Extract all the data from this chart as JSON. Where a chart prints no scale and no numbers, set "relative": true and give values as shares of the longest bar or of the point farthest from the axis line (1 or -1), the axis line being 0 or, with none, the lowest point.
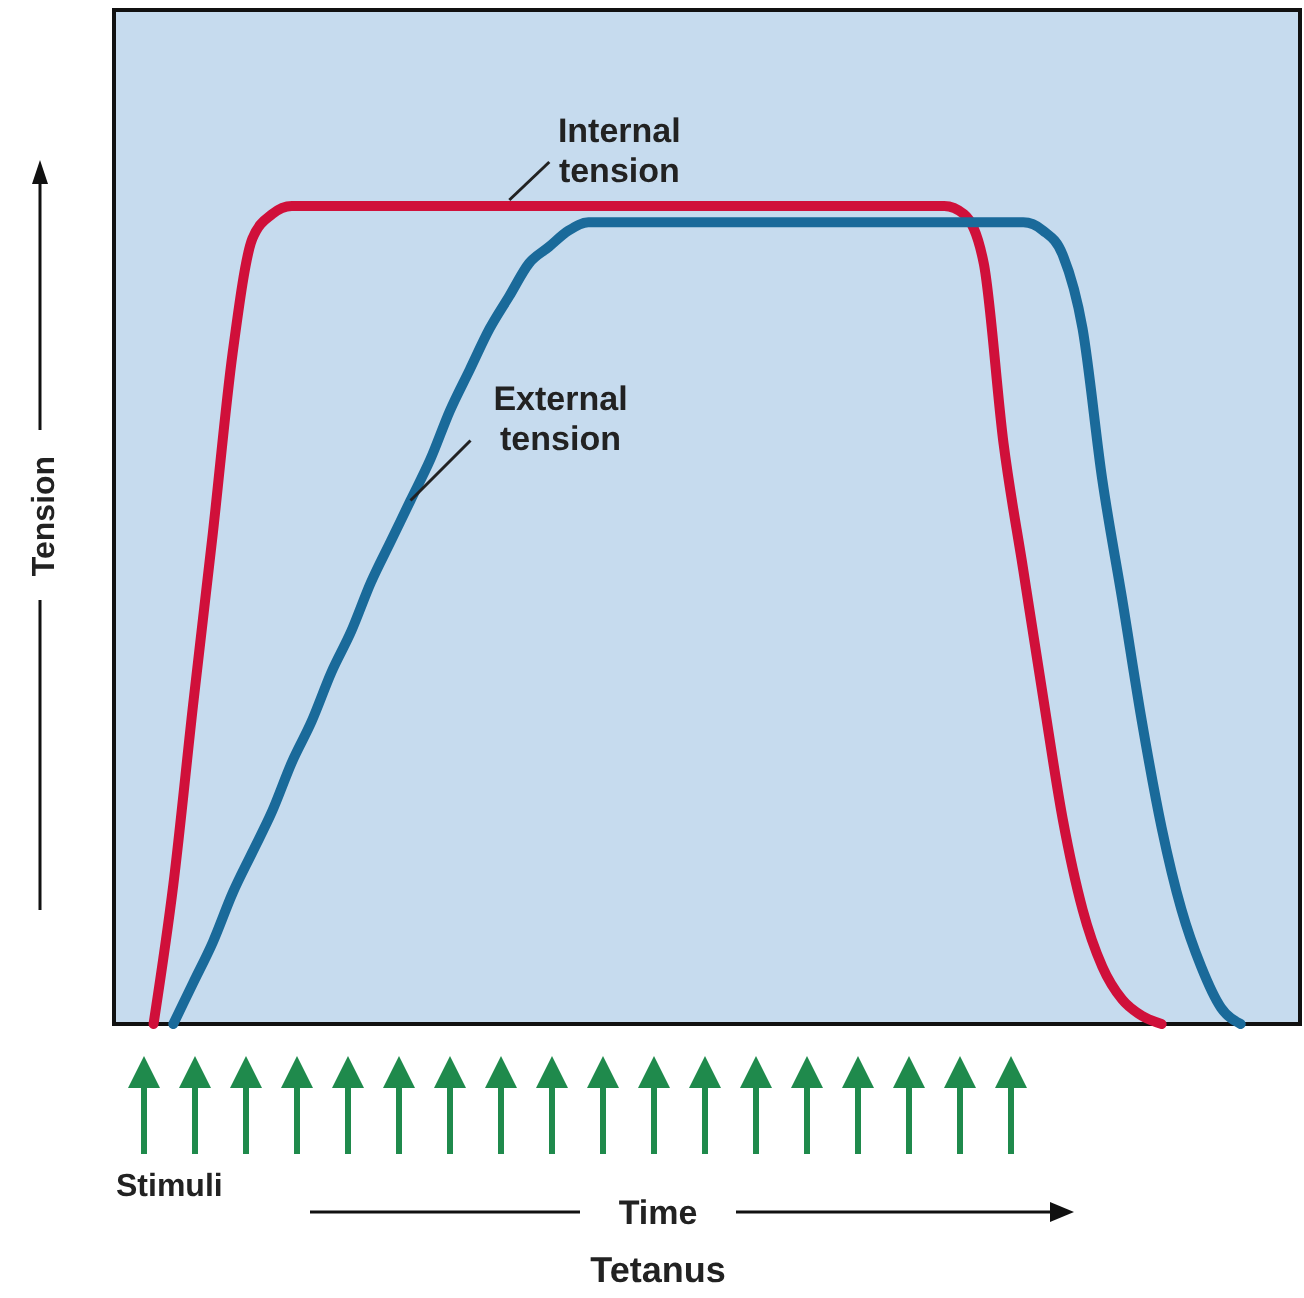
{
  "chart_data": {
    "type": "line",
    "title": "Tetanus",
    "xlabel": "Time",
    "ylabel": "Tension",
    "annotations": [
      "Stimuli"
    ],
    "relative": true,
    "categories": [
      null,
      null,
      null,
      null,
      null,
      null,
      null,
      null,
      null,
      null,
      null,
      null,
      null,
      null,
      null,
      null,
      null,
      null,
      null,
      null,
      null,
      null,
      null,
      null,
      null,
      null,
      null,
      null,
      null,
      null,
      null,
      null,
      null,
      null,
      null,
      null,
      null,
      null,
      null,
      null,
      null,
      null,
      null,
      null,
      null,
      null,
      null,
      null,
      null,
      null,
      null,
      null,
      null,
      null,
      null,
      null,
      null,
      null,
      null,
      null,
      null
    ],
    "series": [
      {
        "name": "Internal tension",
        "color": "#d0103a",
        "values": [
          null,
          null,
          0,
          0.17,
          0.39,
          0.6,
          0.82,
          0.96,
          0.99,
          1,
          1,
          1,
          1,
          1,
          1,
          1,
          1,
          1,
          1,
          1,
          1,
          1,
          1,
          1,
          1,
          1,
          1,
          1,
          1,
          1,
          1,
          1,
          1,
          1,
          1,
          1,
          1,
          1,
          1,
          1,
          1,
          1,
          1,
          0.99,
          0.93,
          0.71,
          0.555,
          0.4,
          0.25,
          0.14,
          0.07,
          0.03,
          0.01,
          0,
          null,
          null,
          null,
          null,
          null,
          null,
          null
        ]
      },
      {
        "name": "External tension",
        "color": "#1a6a9a",
        "values": [
          null,
          null,
          null,
          0,
          0.05,
          0.1,
          0.16,
          0.21,
          0.26,
          0.32,
          0.37,
          0.43,
          0.48,
          0.54,
          0.59,
          0.64,
          0.69,
          0.75,
          0.8,
          0.85,
          0.89,
          0.93,
          0.95,
          0.97,
          0.98,
          0.98,
          0.98,
          0.98,
          0.98,
          0.98,
          0.98,
          0.98,
          0.98,
          0.98,
          0.98,
          0.98,
          0.98,
          0.98,
          0.98,
          0.98,
          0.98,
          0.98,
          0.98,
          0.98,
          0.98,
          0.98,
          0.98,
          0.97,
          0.94,
          0.85,
          0.665,
          0.52,
          0.37,
          0.24,
          0.14,
          0.07,
          0.02,
          0,
          null,
          null,
          null
        ]
      }
    ]
  }
}
